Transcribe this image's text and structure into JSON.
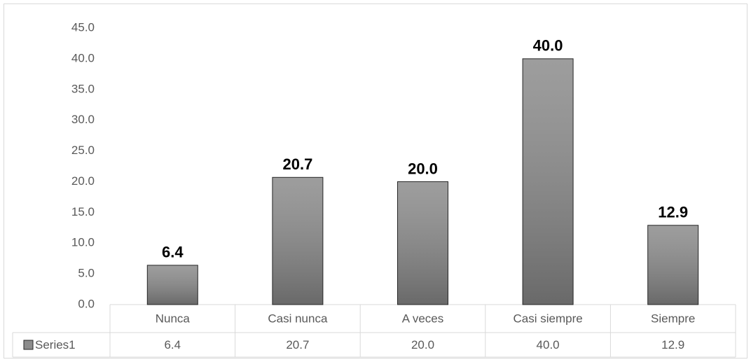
{
  "chart_data": {
    "type": "bar",
    "categories": [
      "Nunca",
      "Casi nunca",
      "A veces",
      "Casi siempre",
      "Siempre"
    ],
    "series": [
      {
        "name": "Series1",
        "color": "#8c8c8c",
        "values": [
          6.4,
          20.7,
          20.0,
          40.0,
          12.9
        ],
        "value_labels": [
          "6.4",
          "20.7",
          "20.0",
          "40.0",
          "12.9"
        ]
      }
    ],
    "ylim": [
      0,
      45
    ],
    "yticks": [
      {
        "value": 0,
        "label": "0.0"
      },
      {
        "value": 5,
        "label": "5.0"
      },
      {
        "value": 10,
        "label": "10.0"
      },
      {
        "value": 15,
        "label": "15.0"
      },
      {
        "value": 20,
        "label": "20.0"
      },
      {
        "value": 25,
        "label": "25.0"
      },
      {
        "value": 30,
        "label": "30.0"
      },
      {
        "value": 35,
        "label": "35.0"
      },
      {
        "value": 40,
        "label": "40.0"
      },
      {
        "value": 45,
        "label": "45.0"
      }
    ],
    "grid": false,
    "data_table": true
  }
}
